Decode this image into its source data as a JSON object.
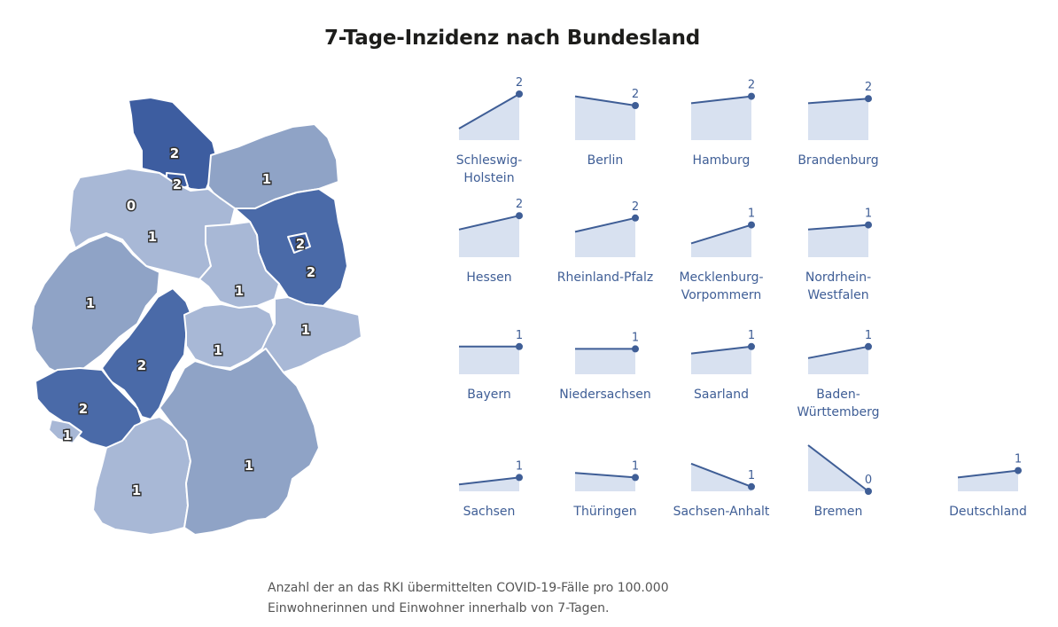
{
  "title": "7-Tage-Inzidenz nach Bundesland",
  "footnote": "Anzahl der an das RKI übermittelten COVID-19-Fälle pro 100.000 Einwohnerinnen und Einwohner innerhalb von 7-Tagen.",
  "colors": {
    "level_0": "#8fa3c6",
    "level_1": "#8fa3c6",
    "level_1_light": "#a8b8d6",
    "level_2": "#4a6aa8",
    "level_2_dark": "#3d5da0",
    "spark_line": "#3f5e96",
    "spark_area": "#d8e1f0"
  },
  "map_labels": {
    "schleswig_holstein": "2",
    "hamburg": "2",
    "bremen": "0",
    "niedersachsen": "1",
    "mecklenburg_vorpommern": "1",
    "berlin": "2",
    "brandenburg": "2",
    "sachsen_anhalt": "1",
    "nordrhein_westfalen": "1",
    "hessen": "2",
    "thueringen": "1",
    "sachsen": "1",
    "rheinland_pfalz": "2",
    "saarland": "1",
    "baden_wuerttemberg": "1",
    "bayern": "1"
  },
  "sparklines": [
    {
      "name": [
        "Schleswig-",
        "Holstein"
      ],
      "value": "2"
    },
    {
      "name": [
        "Berlin"
      ],
      "value": "2"
    },
    {
      "name": [
        "Hamburg"
      ],
      "value": "2"
    },
    {
      "name": [
        "Brandenburg"
      ],
      "value": "2"
    },
    {
      "name": [
        "Hessen"
      ],
      "value": "2"
    },
    {
      "name": [
        "Rheinland-Pfalz"
      ],
      "value": "2"
    },
    {
      "name": [
        "Mecklenburg-",
        "Vorpommern"
      ],
      "value": "1"
    },
    {
      "name": [
        "Nordrhein-",
        "Westfalen"
      ],
      "value": "1"
    },
    {
      "name": [
        "Bayern"
      ],
      "value": "1"
    },
    {
      "name": [
        "Niedersachsen"
      ],
      "value": "1"
    },
    {
      "name": [
        "Saarland"
      ],
      "value": "1"
    },
    {
      "name": [
        "Baden-",
        "Württemberg"
      ],
      "value": "1"
    },
    {
      "name": [
        "Sachsen"
      ],
      "value": "1"
    },
    {
      "name": [
        "Thüringen"
      ],
      "value": "1"
    },
    {
      "name": [
        "Sachsen-Anhalt"
      ],
      "value": "1"
    },
    {
      "name": [
        "Bremen"
      ],
      "value": "0"
    },
    {
      "name": [
        "Deutschland"
      ],
      "value": "1"
    }
  ]
}
